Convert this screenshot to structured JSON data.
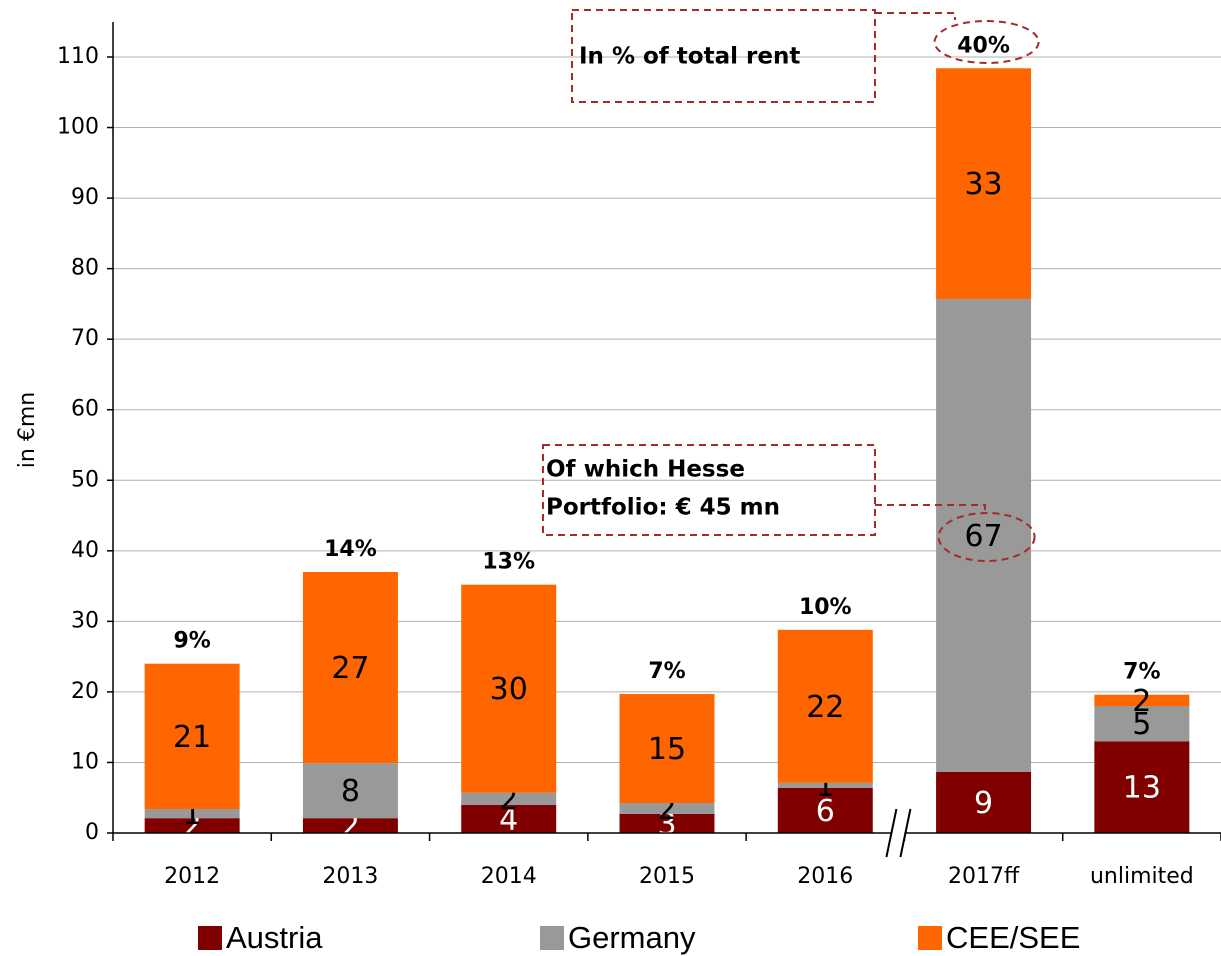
{
  "chart_data": {
    "type": "bar",
    "stacked": true,
    "y_label": "in €mn",
    "categories": [
      "2012",
      "2013",
      "2014",
      "2015",
      "2016",
      "2017ff",
      "unlimited"
    ],
    "series": [
      {
        "name": "Austria",
        "color": "#800000",
        "values": [
          2.1,
          2.1,
          4.0,
          2.7,
          6.4,
          8.65,
          13.0
        ],
        "value_labels": [
          "2",
          "2",
          "4",
          "3",
          "6",
          "9",
          "13"
        ]
      },
      {
        "name": "Germany",
        "color": "#999999",
        "values": [
          1.3,
          7.8,
          1.7,
          1.55,
          0.7,
          67.05,
          5.0
        ],
        "value_labels": [
          "1",
          "8",
          "2",
          "2",
          "1",
          "67",
          "5"
        ]
      },
      {
        "name": "CEE/SEE",
        "color": "#ff6600",
        "values": [
          20.6,
          27.1,
          29.5,
          15.45,
          21.7,
          32.7,
          1.6
        ],
        "value_labels": [
          "21",
          "27",
          "30",
          "15",
          "22",
          "33",
          "2"
        ]
      }
    ],
    "share_labels": [
      "9%",
      "14%",
      "13%",
      "7%",
      "10%",
      "40%",
      "7%"
    ],
    "annotations": [
      [
        "In % of total rent"
      ],
      [
        "Of which Hesse",
        "Portfolio: € 45 mn"
      ]
    ],
    "ylim": [
      0,
      110
    ],
    "yticks": [
      0,
      10,
      20,
      30,
      40,
      50,
      60,
      70,
      80,
      90,
      100,
      110
    ],
    "grid": true,
    "legend": "bottom"
  }
}
